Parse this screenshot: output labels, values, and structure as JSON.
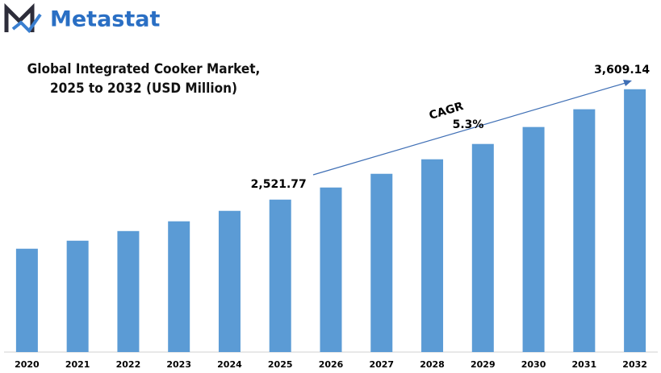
{
  "logo": "Metastat",
  "chart_data": {
    "type": "bar",
    "title": "Global Integrated Cooker Market, 2025 to 2032 (USD Million)",
    "categories": [
      "2020",
      "2021",
      "2022",
      "2023",
      "2024",
      "2025",
      "2026",
      "2027",
      "2028",
      "2029",
      "2030",
      "2031",
      "2032"
    ],
    "values": [
      2038,
      2117,
      2212,
      2308,
      2411,
      2521.77,
      2641,
      2776,
      2919,
      3070,
      3237,
      3412,
      3609.14
    ],
    "value_labels": [
      null,
      null,
      null,
      null,
      null,
      "2,521.77",
      null,
      null,
      null,
      null,
      null,
      null,
      "3,609.14"
    ],
    "color": "#5b9bd5",
    "ylim": [
      1020,
      3620
    ],
    "annotations": [
      "CAGR",
      "5.3%"
    ]
  }
}
